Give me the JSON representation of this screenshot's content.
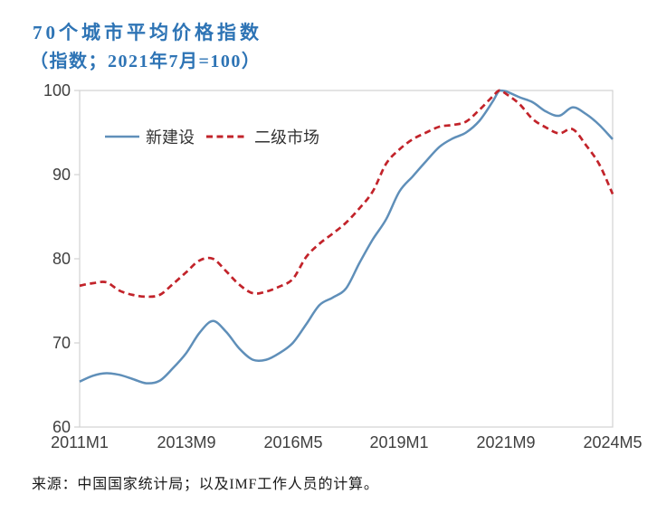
{
  "colors": {
    "title_blue": "#2e74b5",
    "new_construction_line": "#5f8fb9",
    "secondary_market_line": "#c2232a",
    "axis_text": "#3f3f3f",
    "plot_border": "#d2d2d2",
    "source_text": "#1a1a1a"
  },
  "chart_data": {
    "type": "line",
    "title": "70个城市平均价格指数",
    "subtitle": "（指数；2021年7月=100）",
    "source": "来源：中国国家统计局；以及IMF工作人员的计算。",
    "grid": false,
    "legend_position": "top-left-inside",
    "xlim": [
      0,
      160
    ],
    "ylim": [
      60,
      100
    ],
    "x_unit": "months since 2011M1",
    "x_tick_months": [
      0,
      32,
      64,
      96,
      128,
      160
    ],
    "x_tick_labels": [
      "2011M1",
      "2013M9",
      "2016M5",
      "2019M1",
      "2021M9",
      "2024M5"
    ],
    "y_ticks": [
      60,
      70,
      80,
      90,
      100
    ],
    "months": [
      0,
      4,
      8,
      12,
      16,
      20,
      24,
      28,
      32,
      36,
      40,
      44,
      48,
      52,
      56,
      60,
      64,
      68,
      72,
      76,
      80,
      84,
      88,
      92,
      96,
      100,
      104,
      108,
      112,
      116,
      120,
      124,
      126,
      128,
      132,
      136,
      140,
      144,
      148,
      152,
      156,
      160
    ],
    "series": [
      {
        "id": "new-construction",
        "name": "新建设",
        "style": "solid",
        "color": "#5f8fb9",
        "values": [
          65.4,
          66.1,
          66.4,
          66.2,
          65.7,
          65.2,
          65.5,
          67.0,
          68.8,
          71.2,
          72.6,
          71.3,
          69.3,
          68.0,
          68.0,
          68.8,
          70.0,
          72.2,
          74.5,
          75.4,
          76.5,
          79.5,
          82.3,
          84.7,
          88.0,
          89.8,
          91.6,
          93.3,
          94.3,
          95.0,
          96.4,
          98.7,
          100.0,
          99.9,
          99.2,
          98.6,
          97.5,
          97.0,
          98.0,
          97.2,
          95.9,
          94.2
        ]
      },
      {
        "id": "secondary-market",
        "name": "二级市场",
        "style": "dashed",
        "color": "#c2232a",
        "values": [
          76.8,
          77.1,
          77.2,
          76.2,
          75.7,
          75.5,
          75.7,
          77.0,
          78.4,
          79.8,
          80.0,
          78.5,
          76.9,
          75.9,
          76.1,
          76.7,
          77.6,
          80.2,
          81.8,
          83.0,
          84.3,
          86.0,
          88.0,
          91.3,
          93.0,
          94.2,
          95.0,
          95.7,
          95.9,
          96.3,
          97.7,
          99.3,
          100.0,
          99.6,
          98.4,
          96.6,
          95.6,
          94.9,
          95.4,
          93.5,
          91.2,
          87.7
        ]
      }
    ]
  }
}
